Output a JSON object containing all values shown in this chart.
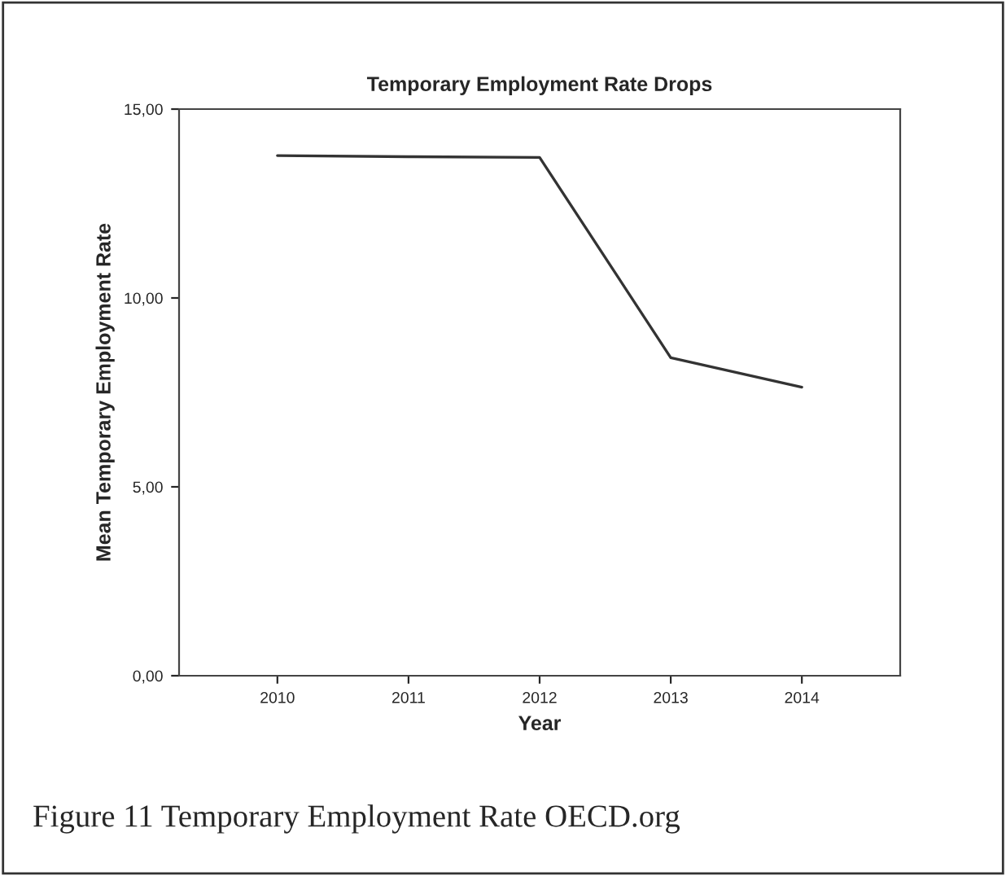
{
  "chart_data": {
    "type": "line",
    "title": "Temporary Employment Rate Drops",
    "xlabel": "Year",
    "ylabel": "Mean Temporary Employment Rate",
    "categories": [
      "2010",
      "2011",
      "2012",
      "2013",
      "2014"
    ],
    "series": [
      {
        "color": "#333333",
        "values": [
          13.77,
          13.74,
          13.72,
          8.42,
          7.64
        ]
      }
    ],
    "ylim": [
      0,
      15.0
    ],
    "yticks": [
      {
        "value": 0,
        "label": "0,00"
      },
      {
        "value": 5,
        "label": "5,00"
      },
      {
        "value": 10,
        "label": "10,00"
      },
      {
        "value": 15,
        "label": "15,00"
      }
    ],
    "grid": false,
    "legend": false,
    "marker": "none",
    "line_style": "solid",
    "annotations": [
      "Figure 11 Temporary Employment Rate OECD.org"
    ]
  }
}
